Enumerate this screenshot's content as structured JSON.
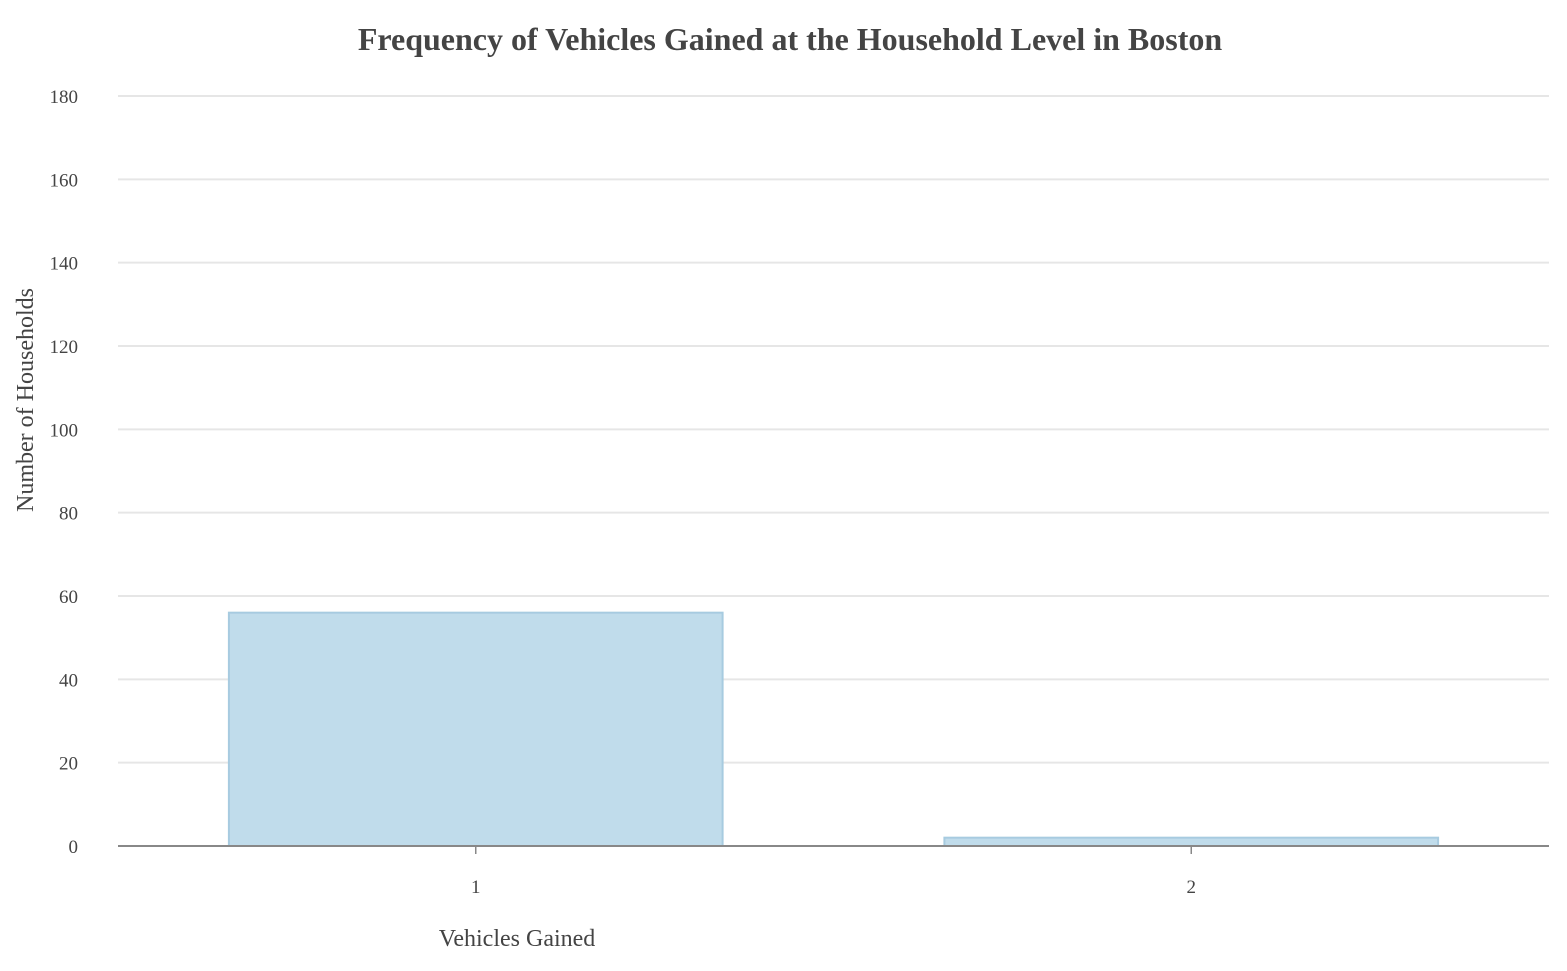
{
  "chart_data": {
    "type": "bar",
    "title": "Frequency of Vehicles Gained at the Household Level in Boston",
    "xlabel": "Vehicles Gained",
    "ylabel": "Number of Households",
    "categories": [
      "1",
      "2"
    ],
    "values": [
      56,
      2
    ],
    "ylim": [
      0,
      180
    ],
    "yticks": [
      0,
      20,
      40,
      60,
      80,
      100,
      120,
      140,
      160,
      180
    ],
    "grid": true,
    "legend": "none",
    "colors": {
      "bar_fill": "#c0dceb",
      "bar_stroke": "#a7cbe0",
      "text": "#444444"
    }
  }
}
